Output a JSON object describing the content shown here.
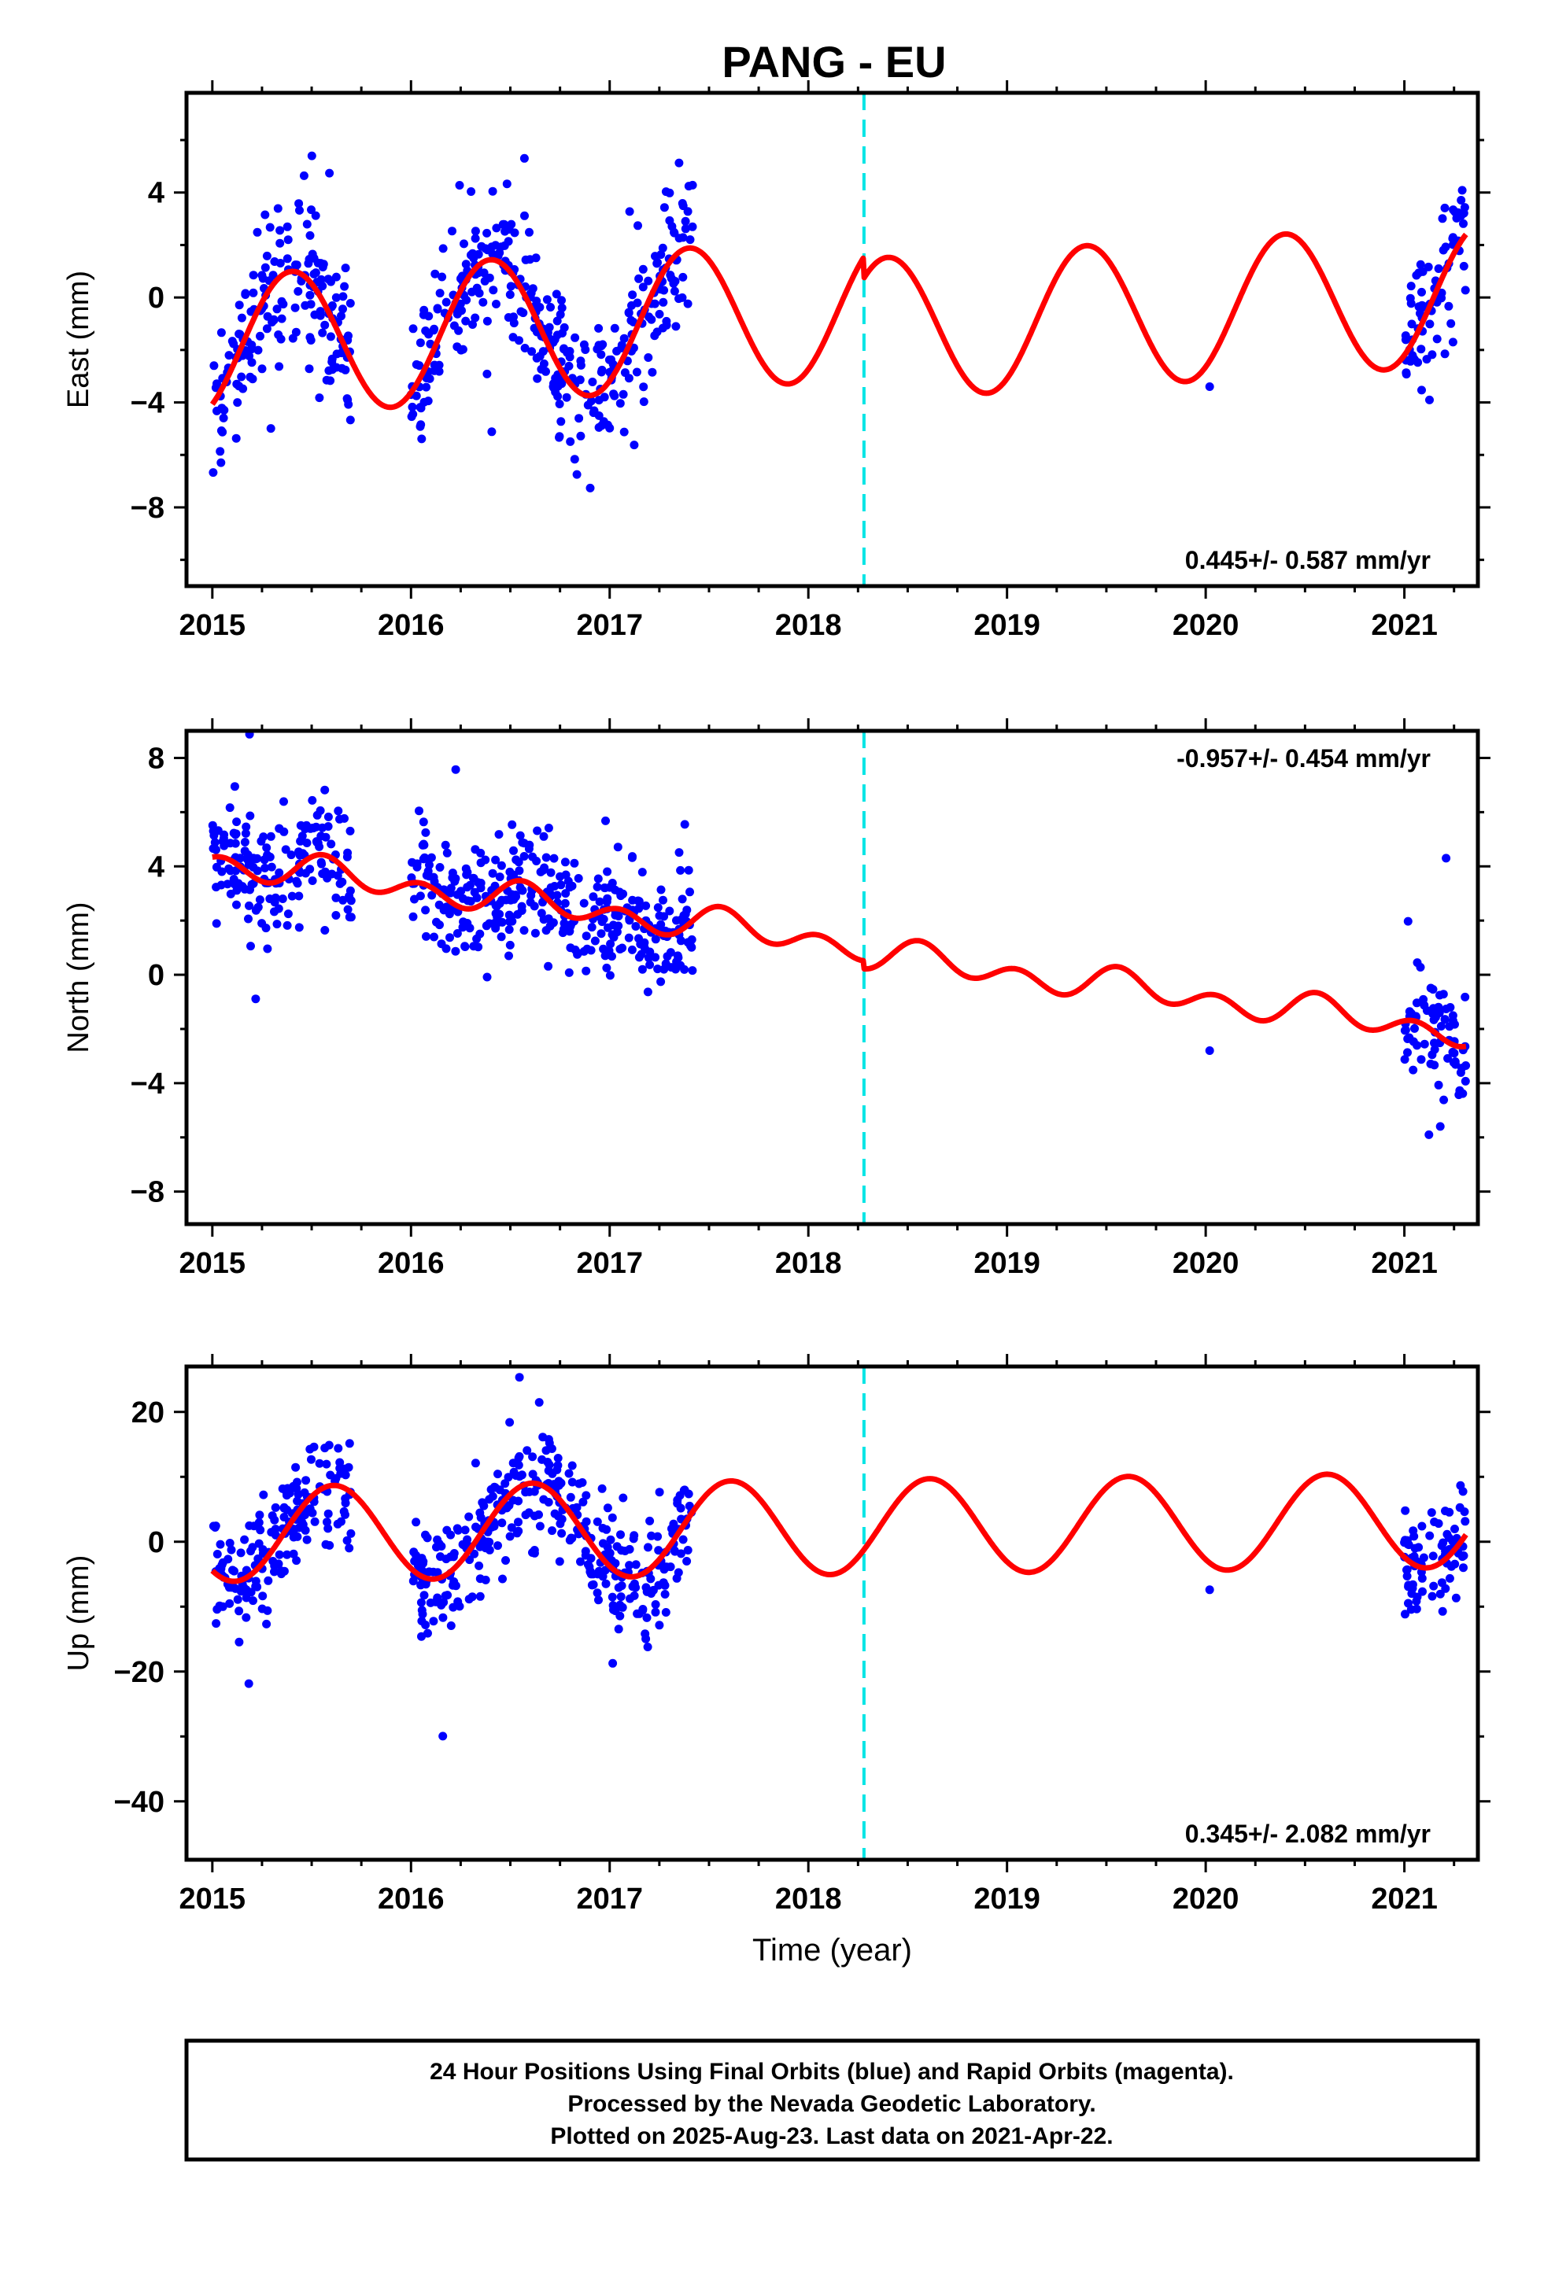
{
  "title": "PANG - EU",
  "colors": {
    "final_points": "#0000ff",
    "model_fit": "#ff0000",
    "antenna_change": "#00e5e5",
    "frame": "#000000"
  },
  "footer": {
    "line1": "24 Hour Positions Using Final Orbits (blue) and Rapid Orbits (magenta).",
    "line2": "Processed by the Nevada Geodetic Laboratory.",
    "line3": "Plotted on 2025-Aug-23. Last data on 2021-Apr-22."
  },
  "chart_data": [
    {
      "type": "scatter",
      "component": "east",
      "ylabel": "East (mm)",
      "xlabel": "",
      "xlim": [
        2014.87,
        2021.37
      ],
      "ylim": [
        -11,
        7.8
      ],
      "xticks": [
        2015,
        2016,
        2017,
        2018,
        2019,
        2020,
        2021
      ],
      "yticks": [
        -8,
        -4,
        0,
        4
      ],
      "ytick_labels": [
        "−8",
        "−4",
        "0",
        "4"
      ],
      "rate_label": "0.445+/- 0.587 mm/yr",
      "rate_position": "bottom-right",
      "break_epoch": 2018.28,
      "data_segments": [
        [
          2015.0,
          2015.7
        ],
        [
          2016.0,
          2017.42
        ],
        [
          2021.0,
          2021.31
        ]
      ],
      "isolated_points": [
        [
          2020.02,
          -3.4
        ]
      ],
      "model": {
        "offset_mm": -0.55,
        "rate_mm_per_yr": 0.445,
        "annual_amp_mm": 2.7,
        "annual_peak_phase": 0.4,
        "step_at_break_mm": -0.8,
        "start": 2015.0,
        "end": 2021.31
      },
      "scatter_sigma_mm": 1.4
    },
    {
      "type": "scatter",
      "component": "north",
      "ylabel": "North (mm)",
      "xlabel": "",
      "xlim": [
        2014.87,
        2021.37
      ],
      "ylim": [
        -9.2,
        9
      ],
      "xticks": [
        2015,
        2016,
        2017,
        2018,
        2019,
        2020,
        2021
      ],
      "yticks": [
        -8,
        -4,
        0,
        4,
        8
      ],
      "ytick_labels": [
        "−8",
        "−4",
        "0",
        "4",
        "8"
      ],
      "rate_label": "-0.957+/- 0.454 mm/yr",
      "rate_position": "top-right",
      "break_epoch": 2018.28,
      "data_segments": [
        [
          2015.0,
          2015.7
        ],
        [
          2016.0,
          2017.42
        ],
        [
          2021.0,
          2021.31
        ]
      ],
      "isolated_points": [
        [
          2020.02,
          -2.8
        ],
        [
          2021.21,
          4.3
        ]
      ],
      "model": {
        "offset_mm": 1.35,
        "rate_mm_per_yr": -0.957,
        "annual_amp_mm": 0.3,
        "annual_peak_phase": 0.6,
        "semiannual_amp_mm": 0.45,
        "semiannual_peak_phase": 0.55,
        "step_at_break_mm": -0.3,
        "start": 2015.0,
        "end": 2021.31
      },
      "scatter_sigma_mm": 1.1
    },
    {
      "type": "scatter",
      "component": "up",
      "ylabel": "Up (mm)",
      "xlabel": "Time (year)",
      "xlim": [
        2014.87,
        2021.37
      ],
      "ylim": [
        -49,
        27
      ],
      "xticks": [
        2015,
        2016,
        2017,
        2018,
        2019,
        2020,
        2021
      ],
      "yticks": [
        -40,
        -20,
        0,
        20
      ],
      "ytick_labels": [
        "−40",
        "−20",
        "0",
        "20"
      ],
      "rate_label": "0.345+/- 2.082 mm/yr",
      "rate_position": "bottom-right",
      "break_epoch": 2018.28,
      "data_segments": [
        [
          2015.0,
          2015.7
        ],
        [
          2016.0,
          2017.42
        ],
        [
          2021.0,
          2021.31
        ]
      ],
      "isolated_points": [
        [
          2020.02,
          -7.4
        ]
      ],
      "model": {
        "offset_mm": 2.2,
        "rate_mm_per_yr": 0.345,
        "annual_amp_mm": 7.3,
        "annual_peak_phase": 0.61,
        "step_at_break_mm": 0.0,
        "start": 2015.0,
        "end": 2021.31
      },
      "scatter_sigma_mm": 4.5
    }
  ]
}
